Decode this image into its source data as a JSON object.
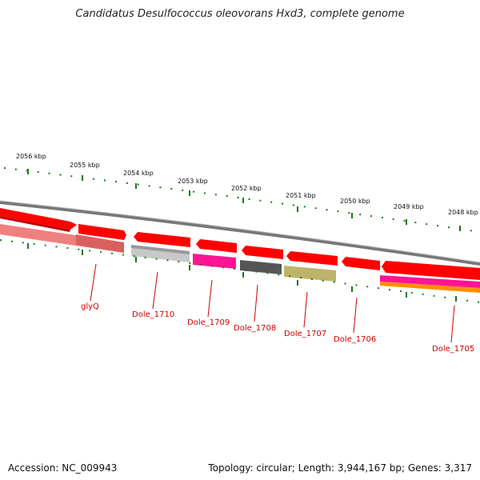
{
  "title": "Candidatus Desulfococcus oleovorans Hxd3, complete genome",
  "footer": {
    "accession": "Accession: NC_009943",
    "summary": "Topology: circular; Length: 3,944,167 bp; Genes: 3,317"
  },
  "scale_labels": [
    "2056 kbp",
    "2055 kbp",
    "2054 kbp",
    "2053 kbp",
    "2052 kbp",
    "2051 kbp",
    "2050 kbp",
    "2049 kbp",
    "2048 kbp"
  ],
  "gene_labels": [
    "glyQ",
    "Dole_1710",
    "Dole_1709",
    "Dole_1708",
    "Dole_1707",
    "Dole_1706",
    "Dole_1705"
  ],
  "colors": {
    "backbone": "#808080",
    "cds": "#ff0000",
    "cds_shadow": "#b00000",
    "tick": "#1a7a1a",
    "label": "#cc0000",
    "feature_colors": [
      "#f08080",
      "#c0c0c0",
      "#ff1493",
      "#555555",
      "#b8b060",
      "#ff8c00"
    ]
  }
}
